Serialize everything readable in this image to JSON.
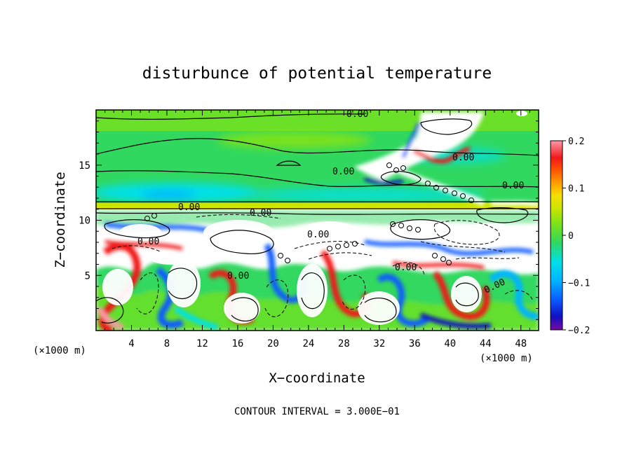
{
  "chart_data": {
    "type": "heatmap",
    "title": "disturbunce of potential temperature",
    "xlabel": "X−coordinate",
    "ylabel": "Z−coordinate",
    "x_unit": "(×1000 m)",
    "y_unit": "(×1000 m)",
    "xlim": [
      0,
      50
    ],
    "ylim": [
      0,
      20
    ],
    "x_ticks": [
      4,
      8,
      12,
      16,
      20,
      24,
      28,
      32,
      36,
      40,
      44,
      48
    ],
    "y_ticks": [
      5,
      10,
      15
    ],
    "colorbar": {
      "min": -0.2,
      "max": 0.2,
      "tick_values": [
        0.2,
        0.1,
        0,
        -0.1,
        -0.2
      ],
      "tick_labels": [
        "0.2",
        "0.1",
        "0",
        "−0.1",
        "−0.2"
      ]
    },
    "contour_labels": [
      "0.00",
      "0.00",
      "0.00",
      "0.00",
      "0.00",
      "0.00",
      "0.00",
      "0.00",
      "0.00",
      "0.00",
      "0.00"
    ],
    "footer": "CONTOUR INTERVAL = 3.000E−01"
  },
  "colors": {
    "colormap": [
      "#7a0aa0",
      "#1010c0",
      "#0a5cff",
      "#00b4ff",
      "#00e0e8",
      "#30d860",
      "#7ae21a",
      "#c8e600",
      "#f5e000",
      "#ffa500",
      "#ff5a00",
      "#f01818",
      "#ff9aaa",
      "#ffffff"
    ],
    "background": "#ffffff",
    "contour": "#000000"
  }
}
